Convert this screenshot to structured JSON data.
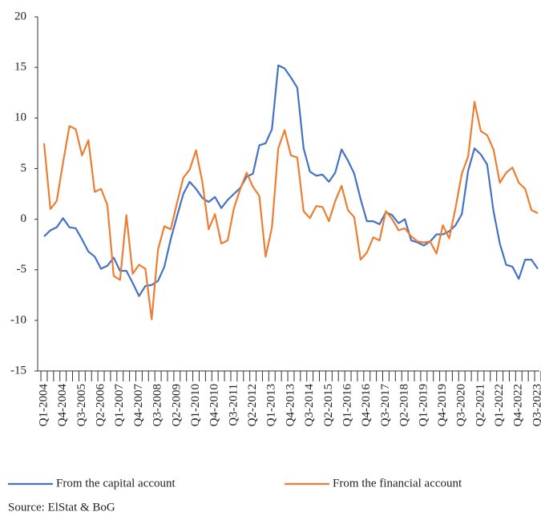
{
  "chart_data": {
    "type": "line",
    "categories": [
      "Q1-2004",
      null,
      null,
      "Q4-2004",
      null,
      null,
      "Q3-2005",
      null,
      null,
      "Q2-2006",
      null,
      null,
      "Q1-2007",
      null,
      null,
      "Q4-2007",
      null,
      null,
      "Q3-2008",
      null,
      null,
      "Q2-2009",
      null,
      null,
      "Q1-2010",
      null,
      null,
      "Q4-2010",
      null,
      null,
      "Q3-2011",
      null,
      null,
      "Q2-2012",
      null,
      null,
      "Q1-2013",
      null,
      null,
      "Q4-2013",
      null,
      null,
      "Q3-2014",
      null,
      null,
      "Q2-2015",
      null,
      null,
      "Q1-2016",
      null,
      null,
      "Q4-2016",
      null,
      null,
      "Q3-2017",
      null,
      null,
      "Q2-2018",
      null,
      null,
      "Q1-2019",
      null,
      null,
      "Q4-2019",
      null,
      null,
      "Q3-2020",
      null,
      null,
      "Q2-2021",
      null,
      null,
      "Q1-2022",
      null,
      null,
      "Q4-2022",
      null,
      null,
      "Q3-2023"
    ],
    "series": [
      {
        "name": "From the capital account",
        "color": "#4472c4",
        "values": [
          -1.7,
          -1.1,
          -0.8,
          0.1,
          -0.8,
          -0.9,
          -2.0,
          -3.2,
          -3.7,
          -4.9,
          -4.6,
          -3.8,
          -5.1,
          -5.1,
          -6.3,
          -7.6,
          -6.6,
          -6.5,
          -6.1,
          -4.7,
          -2.0,
          0.3,
          2.5,
          3.7,
          3.0,
          2.1,
          1.7,
          2.2,
          1.1,
          1.9,
          2.5,
          3.1,
          4.2,
          4.5,
          7.3,
          7.5,
          8.9,
          15.2,
          14.9,
          14.0,
          13.0,
          7.0,
          4.7,
          4.3,
          4.4,
          3.7,
          4.6,
          6.9,
          5.8,
          4.5,
          2.0,
          -0.2,
          -0.2,
          -0.5,
          0.7,
          0.4,
          -0.4,
          0.0,
          -2.1,
          -2.3,
          -2.6,
          -2.2,
          -1.5,
          -1.5,
          -1.2,
          -0.6,
          0.5,
          4.8,
          7.0,
          6.4,
          5.4,
          0.8,
          -2.4,
          -4.5,
          -4.7,
          -5.9,
          -4.0,
          -4.0,
          -4.9
        ]
      },
      {
        "name": "From the financial account",
        "color": "#ed7d31",
        "values": [
          7.5,
          1.0,
          1.8,
          5.6,
          9.2,
          8.9,
          6.3,
          7.8,
          2.7,
          3.0,
          1.4,
          -5.6,
          -6.0,
          0.4,
          -5.4,
          -4.5,
          -4.9,
          -9.9,
          -3.0,
          -0.7,
          -1.0,
          1.6,
          4.1,
          4.9,
          6.8,
          3.7,
          -1.0,
          0.5,
          -2.4,
          -2.1,
          1.1,
          3.0,
          4.6,
          3.2,
          2.3,
          -3.7,
          -0.8,
          7.0,
          8.8,
          6.3,
          6.1,
          0.8,
          0.1,
          1.3,
          1.2,
          -0.2,
          1.8,
          3.3,
          0.9,
          0.2,
          -4.0,
          -3.3,
          -1.8,
          -2.1,
          0.8,
          0.0,
          -1.1,
          -0.9,
          -1.7,
          -2.2,
          -2.3,
          -2.2,
          -3.4,
          -0.6,
          -1.9,
          1.1,
          4.5,
          6.2,
          11.6,
          8.7,
          8.3,
          6.9,
          3.6,
          4.6,
          5.1,
          3.6,
          3.0,
          0.9,
          0.6
        ]
      }
    ],
    "ylim": [
      -15,
      20
    ],
    "yticks": [
      20,
      15,
      10,
      5,
      0,
      -5,
      -10,
      -15
    ],
    "source": "Source: ElStat & BoG"
  }
}
